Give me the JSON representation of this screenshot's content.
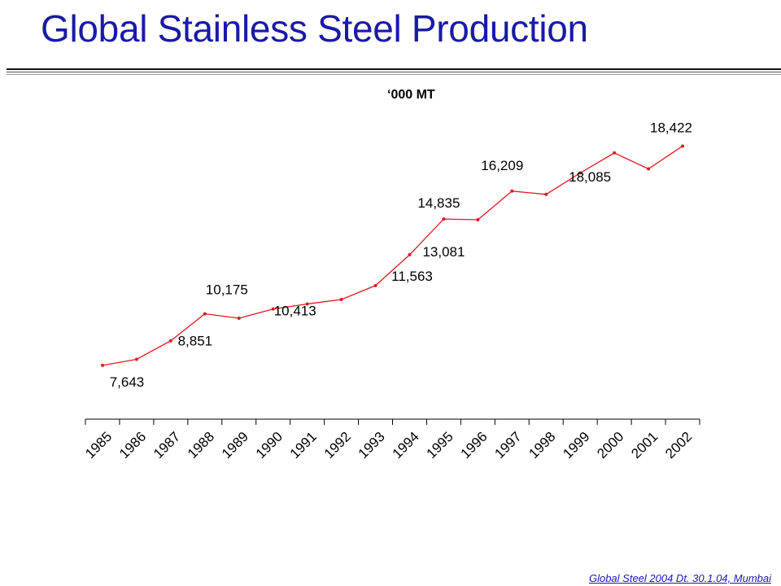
{
  "title": "Global Stainless Steel Production",
  "footer": "Global Steel 2004 Dt. 30.1.04, Mumbai",
  "chart_data": {
    "type": "line",
    "unit_label": "‘000 MT",
    "categories": [
      "1985",
      "1986",
      "1987",
      "1988",
      "1989",
      "1990",
      "1991",
      "1992",
      "1993",
      "1994",
      "1995",
      "1996",
      "1997",
      "1998",
      "1999",
      "2000",
      "2001",
      "2002"
    ],
    "values": [
      7643,
      7940,
      8851,
      10175,
      9960,
      10413,
      10660,
      10880,
      11563,
      13081,
      14835,
      14800,
      16209,
      16050,
      17100,
      18085,
      17300,
      18422
    ],
    "data_labels": [
      {
        "index": 0,
        "text": "7,643"
      },
      {
        "index": 2,
        "text": "8,851"
      },
      {
        "index": 3,
        "text": "10,175"
      },
      {
        "index": 5,
        "text": "10,413"
      },
      {
        "index": 8,
        "text": "11,563"
      },
      {
        "index": 9,
        "text": "13,081"
      },
      {
        "index": 10,
        "text": "14,835"
      },
      {
        "index": 12,
        "text": "16,209"
      },
      {
        "index": 15,
        "text": "18,085"
      },
      {
        "index": 17,
        "text": "18,422"
      }
    ],
    "ylim": [
      5000,
      20000
    ],
    "grid": false,
    "legend": "none",
    "line_color": "#e0191e",
    "axis_color": "#000000"
  }
}
